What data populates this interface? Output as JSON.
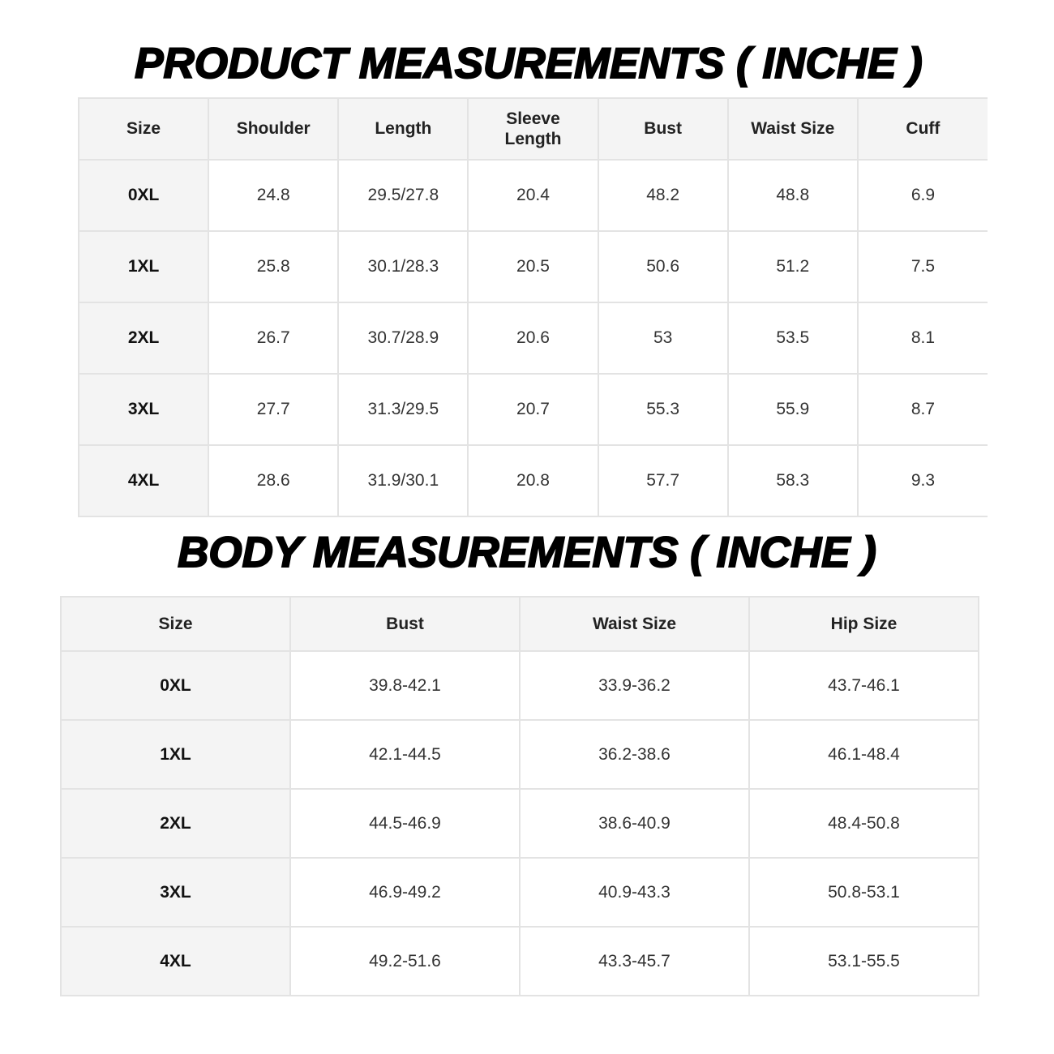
{
  "product": {
    "title": "PRODUCT MEASUREMENTS ( INCHE )",
    "headers": [
      "Size",
      "Shoulder",
      "Length",
      "Sleeve Length",
      "Bust",
      "Waist Size",
      "Cuff"
    ],
    "rows": [
      [
        "0XL",
        "24.8",
        "29.5/27.8",
        "20.4",
        "48.2",
        "48.8",
        "6.9"
      ],
      [
        "1XL",
        "25.8",
        "30.1/28.3",
        "20.5",
        "50.6",
        "51.2",
        "7.5"
      ],
      [
        "2XL",
        "26.7",
        "30.7/28.9",
        "20.6",
        "53",
        "53.5",
        "8.1"
      ],
      [
        "3XL",
        "27.7",
        "31.3/29.5",
        "20.7",
        "55.3",
        "55.9",
        "8.7"
      ],
      [
        "4XL",
        "28.6",
        "31.9/30.1",
        "20.8",
        "57.7",
        "58.3",
        "9.3"
      ]
    ]
  },
  "body": {
    "title": "BODY MEASUREMENTS ( INCHE )",
    "headers": [
      "Size",
      "Bust",
      "Waist Size",
      "Hip Size"
    ],
    "rows": [
      [
        "0XL",
        "39.8-42.1",
        "33.9-36.2",
        "43.7-46.1"
      ],
      [
        "1XL",
        "42.1-44.5",
        "36.2-38.6",
        "46.1-48.4"
      ],
      [
        "2XL",
        "44.5-46.9",
        "38.6-40.9",
        "48.4-50.8"
      ],
      [
        "3XL",
        "46.9-49.2",
        "40.9-43.3",
        "50.8-53.1"
      ],
      [
        "4XL",
        "49.2-51.6",
        "43.3-45.7",
        "53.1-55.5"
      ]
    ]
  },
  "colors": {
    "header_bg": "#f4f4f4",
    "border": "#e3e3e3",
    "title": "#000000"
  }
}
